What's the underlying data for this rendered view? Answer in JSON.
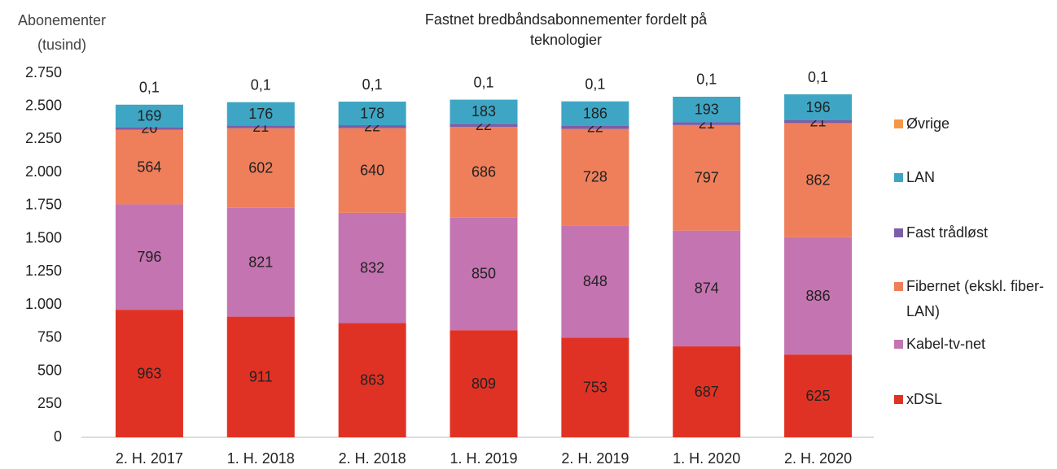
{
  "chart_data": {
    "type": "stacked_bar",
    "title": "Fastnet bredbåndsabonnementer fordelt på teknologier",
    "y_label": "Abonementer (tusind)",
    "categories": [
      "2. H. 2017",
      "1. H. 2018",
      "2. H. 2018",
      "1. H. 2019",
      "2. H. 2019",
      "1. H. 2020",
      "2. H. 2020"
    ],
    "series": [
      {
        "name": "xDSL",
        "color": "#e03224",
        "values": [
          963,
          911,
          863,
          809,
          753,
          687,
          625
        ]
      },
      {
        "name": "Kabel-tv-net",
        "color": "#c474b0",
        "values": [
          796,
          821,
          832,
          850,
          848,
          874,
          886
        ]
      },
      {
        "name": "Fibernet (ekskl. fiber-LAN)",
        "color": "#ef7f5a",
        "values": [
          564,
          602,
          640,
          686,
          728,
          797,
          862
        ]
      },
      {
        "name": "Fast trådløst",
        "color": "#7b5ea8",
        "values": [
          20,
          21,
          22,
          22,
          22,
          21,
          21
        ]
      },
      {
        "name": "LAN",
        "color": "#3ea6c4",
        "values": [
          169,
          176,
          178,
          183,
          186,
          193,
          196
        ]
      },
      {
        "name": "Øvrige",
        "color": "#f79646",
        "values": [
          0.1,
          0.1,
          0.1,
          0.1,
          0.1,
          0.1,
          0.1
        ],
        "value_labels": [
          "0,1",
          "0,1",
          "0,1",
          "0,1",
          "0,1",
          "0,1",
          "0,1"
        ]
      }
    ],
    "ylim": [
      0,
      2750
    ],
    "yticks": [
      0,
      250,
      500,
      750,
      {
        "value": 1000,
        "label": "1.000"
      },
      {
        "value": 1250,
        "label": "1.250"
      },
      {
        "value": 1500,
        "label": "1.500"
      },
      {
        "value": 1750,
        "label": "1.750"
      },
      {
        "value": 2000,
        "label": "2.000"
      },
      {
        "value": 2250,
        "label": "2.250"
      },
      {
        "value": 2500,
        "label": "2.500"
      },
      {
        "value": 2750,
        "label": "2.750"
      }
    ],
    "grid": false,
    "legend": "right"
  }
}
